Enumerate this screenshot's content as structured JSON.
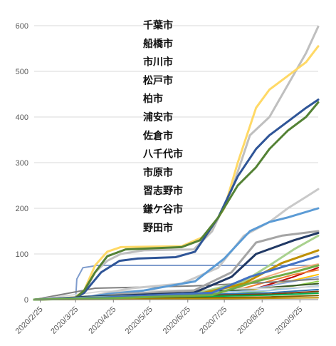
{
  "chart_data": {
    "type": "line",
    "x_axis": {
      "type": "date",
      "range": [
        "2020-02-20",
        "2020-10-10"
      ],
      "tick_labels": [
        "2020/2/25",
        "2020/3/25",
        "2020/4/25",
        "2020/5/25",
        "2020/6/25",
        "2020/7/25",
        "2020/8/25",
        "2020/9/25"
      ],
      "tick_dates": [
        "2020-02-25",
        "2020-03-25",
        "2020-04-25",
        "2020-05-25",
        "2020-06-25",
        "2020-07-25",
        "2020-08-25",
        "2020-09-25"
      ]
    },
    "y_axis": {
      "range": [
        0,
        600
      ],
      "ticks": [
        0,
        100,
        200,
        300,
        400,
        500,
        600
      ]
    },
    "grid": "horizontal",
    "legend_placement": "top-center",
    "legend": [
      "千葉市",
      "船橋市",
      "市川市",
      "松戸市",
      "柏市",
      "浦安市",
      "佐倉市",
      "八千代市",
      "市原市",
      "習志野市",
      "鎌ケ谷市",
      "野田市"
    ],
    "series": [
      {
        "color": "#BFBFBF",
        "points": [
          [
            "2020-02-20",
            0
          ],
          [
            "2020-03-25",
            3
          ],
          [
            "2020-04-01",
            15
          ],
          [
            "2020-04-10",
            60
          ],
          [
            "2020-04-20",
            85
          ],
          [
            "2020-05-01",
            100
          ],
          [
            "2020-05-20",
            108
          ],
          [
            "2020-06-30",
            110
          ],
          [
            "2020-07-15",
            150
          ],
          [
            "2020-07-31",
            240
          ],
          [
            "2020-08-15",
            360
          ],
          [
            "2020-08-31",
            400
          ],
          [
            "2020-09-15",
            470
          ],
          [
            "2020-09-30",
            540
          ],
          [
            "2020-10-10",
            598
          ]
        ]
      },
      {
        "color": "#FFD966",
        "points": [
          [
            "2020-02-20",
            0
          ],
          [
            "2020-03-25",
            5
          ],
          [
            "2020-04-01",
            20
          ],
          [
            "2020-04-10",
            75
          ],
          [
            "2020-04-20",
            105
          ],
          [
            "2020-05-01",
            115
          ],
          [
            "2020-06-20",
            117
          ],
          [
            "2020-07-10",
            140
          ],
          [
            "2020-07-25",
            200
          ],
          [
            "2020-08-05",
            300
          ],
          [
            "2020-08-20",
            420
          ],
          [
            "2020-08-31",
            460
          ],
          [
            "2020-09-15",
            490
          ],
          [
            "2020-09-30",
            520
          ],
          [
            "2020-10-10",
            555
          ]
        ]
      },
      {
        "color": "#2F5597",
        "points": [
          [
            "2020-02-20",
            0
          ],
          [
            "2020-03-25",
            4
          ],
          [
            "2020-04-01",
            15
          ],
          [
            "2020-04-15",
            60
          ],
          [
            "2020-04-30",
            85
          ],
          [
            "2020-05-15",
            90
          ],
          [
            "2020-06-15",
            93
          ],
          [
            "2020-07-01",
            105
          ],
          [
            "2020-07-20",
            180
          ],
          [
            "2020-08-05",
            270
          ],
          [
            "2020-08-20",
            330
          ],
          [
            "2020-08-31",
            360
          ],
          [
            "2020-09-15",
            390
          ],
          [
            "2020-09-30",
            420
          ],
          [
            "2020-10-10",
            438
          ]
        ]
      },
      {
        "color": "#548235",
        "points": [
          [
            "2020-02-20",
            0
          ],
          [
            "2020-03-25",
            4
          ],
          [
            "2020-04-01",
            20
          ],
          [
            "2020-04-10",
            60
          ],
          [
            "2020-04-20",
            95
          ],
          [
            "2020-05-05",
            110
          ],
          [
            "2020-06-20",
            115
          ],
          [
            "2020-07-05",
            130
          ],
          [
            "2020-07-20",
            180
          ],
          [
            "2020-08-05",
            250
          ],
          [
            "2020-08-20",
            290
          ],
          [
            "2020-08-31",
            330
          ],
          [
            "2020-09-15",
            370
          ],
          [
            "2020-09-30",
            400
          ],
          [
            "2020-10-10",
            432
          ]
        ]
      },
      {
        "color": "#C9C9C9",
        "points": [
          [
            "2020-02-20",
            0
          ],
          [
            "2020-04-01",
            4
          ],
          [
            "2020-04-20",
            15
          ],
          [
            "2020-05-10",
            25
          ],
          [
            "2020-06-20",
            35
          ],
          [
            "2020-07-20",
            70
          ],
          [
            "2020-08-10",
            140
          ],
          [
            "2020-08-31",
            170
          ],
          [
            "2020-09-15",
            200
          ],
          [
            "2020-09-30",
            225
          ],
          [
            "2020-10-10",
            242
          ]
        ]
      },
      {
        "color": "#5B9BD5",
        "points": [
          [
            "2020-02-20",
            0
          ],
          [
            "2020-04-01",
            5
          ],
          [
            "2020-04-20",
            12
          ],
          [
            "2020-05-20",
            20
          ],
          [
            "2020-07-01",
            40
          ],
          [
            "2020-07-25",
            90
          ],
          [
            "2020-08-15",
            150
          ],
          [
            "2020-08-31",
            170
          ],
          [
            "2020-09-15",
            180
          ],
          [
            "2020-10-10",
            200
          ]
        ]
      },
      {
        "color": "#A5A5A5",
        "points": [
          [
            "2020-02-20",
            0
          ],
          [
            "2020-04-01",
            3
          ],
          [
            "2020-04-30",
            12
          ],
          [
            "2020-06-30",
            20
          ],
          [
            "2020-07-31",
            60
          ],
          [
            "2020-08-20",
            125
          ],
          [
            "2020-09-10",
            140
          ],
          [
            "2020-10-10",
            150
          ]
        ]
      },
      {
        "color": "#203864",
        "points": [
          [
            "2020-02-20",
            0
          ],
          [
            "2020-04-20",
            8
          ],
          [
            "2020-06-30",
            15
          ],
          [
            "2020-07-31",
            50
          ],
          [
            "2020-08-20",
            100
          ],
          [
            "2020-09-20",
            130
          ],
          [
            "2020-10-10",
            146
          ]
        ]
      },
      {
        "color": "#A9D18E",
        "points": [
          [
            "2020-02-20",
            0
          ],
          [
            "2020-04-10",
            5
          ],
          [
            "2020-06-30",
            12
          ],
          [
            "2020-08-10",
            40
          ],
          [
            "2020-08-31",
            75
          ],
          [
            "2020-09-20",
            110
          ],
          [
            "2020-10-10",
            140
          ]
        ]
      },
      {
        "color": "#BF9000",
        "points": [
          [
            "2020-02-20",
            0
          ],
          [
            "2020-04-10",
            3
          ],
          [
            "2020-06-30",
            10
          ],
          [
            "2020-08-10",
            35
          ],
          [
            "2020-09-10",
            80
          ],
          [
            "2020-10-10",
            108
          ]
        ]
      },
      {
        "color": "#4472C4",
        "points": [
          [
            "2020-02-20",
            0
          ],
          [
            "2020-04-20",
            5
          ],
          [
            "2020-07-15",
            15
          ],
          [
            "2020-08-15",
            50
          ],
          [
            "2020-09-15",
            75
          ],
          [
            "2020-10-10",
            95
          ]
        ]
      },
      {
        "color": "#70AD47",
        "points": [
          [
            "2020-02-20",
            0
          ],
          [
            "2020-04-20",
            3
          ],
          [
            "2020-07-15",
            10
          ],
          [
            "2020-08-20",
            40
          ],
          [
            "2020-09-20",
            60
          ],
          [
            "2020-10-10",
            75
          ]
        ]
      }
    ],
    "extra_series": [
      {
        "color": "#7F9CCD",
        "points": [
          [
            "2020-02-20",
            0
          ],
          [
            "2020-03-25",
            0
          ],
          [
            "2020-03-26",
            45
          ],
          [
            "2020-03-31",
            70
          ],
          [
            "2020-04-10",
            74
          ],
          [
            "2020-04-11",
            75
          ],
          [
            "2020-10-10",
            75
          ]
        ]
      },
      {
        "color": "#F4B183",
        "points": [
          [
            "2020-02-20",
            0
          ],
          [
            "2020-04-30",
            8
          ],
          [
            "2020-07-31",
            25
          ],
          [
            "2020-09-15",
            65
          ],
          [
            "2020-10-10",
            78
          ]
        ]
      },
      {
        "color": "#C00000",
        "points": [
          [
            "2020-02-20",
            0
          ],
          [
            "2020-05-10",
            4
          ],
          [
            "2020-08-15",
            20
          ],
          [
            "2020-09-20",
            50
          ],
          [
            "2020-10-10",
            70
          ]
        ]
      },
      {
        "color": "#ED7D31",
        "points": [
          [
            "2020-02-20",
            0
          ],
          [
            "2020-05-10",
            6
          ],
          [
            "2020-08-10",
            25
          ],
          [
            "2020-09-20",
            55
          ],
          [
            "2020-10-10",
            65
          ]
        ]
      },
      {
        "color": "#FFC000",
        "points": [
          [
            "2020-02-20",
            0
          ],
          [
            "2020-05-10",
            5
          ],
          [
            "2020-08-15",
            20
          ],
          [
            "2020-10-10",
            55
          ]
        ]
      },
      {
        "color": "#8FAADC",
        "points": [
          [
            "2020-02-20",
            0
          ],
          [
            "2020-04-20",
            4
          ],
          [
            "2020-08-10",
            20
          ],
          [
            "2020-10-10",
            50
          ]
        ]
      },
      {
        "color": "#7F7F7F",
        "points": [
          [
            "2020-02-20",
            0
          ],
          [
            "2020-04-10",
            25
          ],
          [
            "2020-06-30",
            30
          ],
          [
            "2020-08-31",
            38
          ],
          [
            "2020-10-10",
            45
          ]
        ]
      },
      {
        "color": "#92D050",
        "points": [
          [
            "2020-02-20",
            0
          ],
          [
            "2020-06-30",
            5
          ],
          [
            "2020-08-31",
            20
          ],
          [
            "2020-10-10",
            40
          ]
        ]
      },
      {
        "color": "#385723",
        "points": [
          [
            "2020-02-20",
            0
          ],
          [
            "2020-04-20",
            10
          ],
          [
            "2020-07-31",
            20
          ],
          [
            "2020-10-10",
            35
          ]
        ]
      },
      {
        "color": "#9DC3E6",
        "points": [
          [
            "2020-02-20",
            0
          ],
          [
            "2020-05-01",
            10
          ],
          [
            "2020-08-31",
            20
          ],
          [
            "2020-10-10",
            30
          ]
        ]
      },
      {
        "color": "#D9D9D9",
        "points": [
          [
            "2020-02-20",
            0
          ],
          [
            "2020-04-15",
            18
          ],
          [
            "2020-07-15",
            22
          ],
          [
            "2020-10-10",
            28
          ]
        ]
      },
      {
        "color": "#2E75B6",
        "points": [
          [
            "2020-02-20",
            0
          ],
          [
            "2020-04-20",
            6
          ],
          [
            "2020-08-31",
            15
          ],
          [
            "2020-10-10",
            22
          ]
        ]
      },
      {
        "color": "#843C0C",
        "points": [
          [
            "2020-02-20",
            0
          ],
          [
            "2020-04-20",
            5
          ],
          [
            "2020-08-31",
            12
          ],
          [
            "2020-10-10",
            18
          ]
        ]
      },
      {
        "color": "#00B050",
        "points": [
          [
            "2020-02-20",
            0
          ],
          [
            "2020-05-01",
            3
          ],
          [
            "2020-09-01",
            10
          ],
          [
            "2020-10-10",
            14
          ]
        ]
      },
      {
        "color": "#806000",
        "points": [
          [
            "2020-02-20",
            0
          ],
          [
            "2020-05-01",
            2
          ],
          [
            "2020-09-01",
            6
          ],
          [
            "2020-10-10",
            9
          ]
        ]
      },
      {
        "color": "#BF8F00",
        "points": [
          [
            "2020-02-20",
            0
          ],
          [
            "2020-06-01",
            1
          ],
          [
            "2020-10-10",
            4
          ]
        ]
      }
    ]
  }
}
